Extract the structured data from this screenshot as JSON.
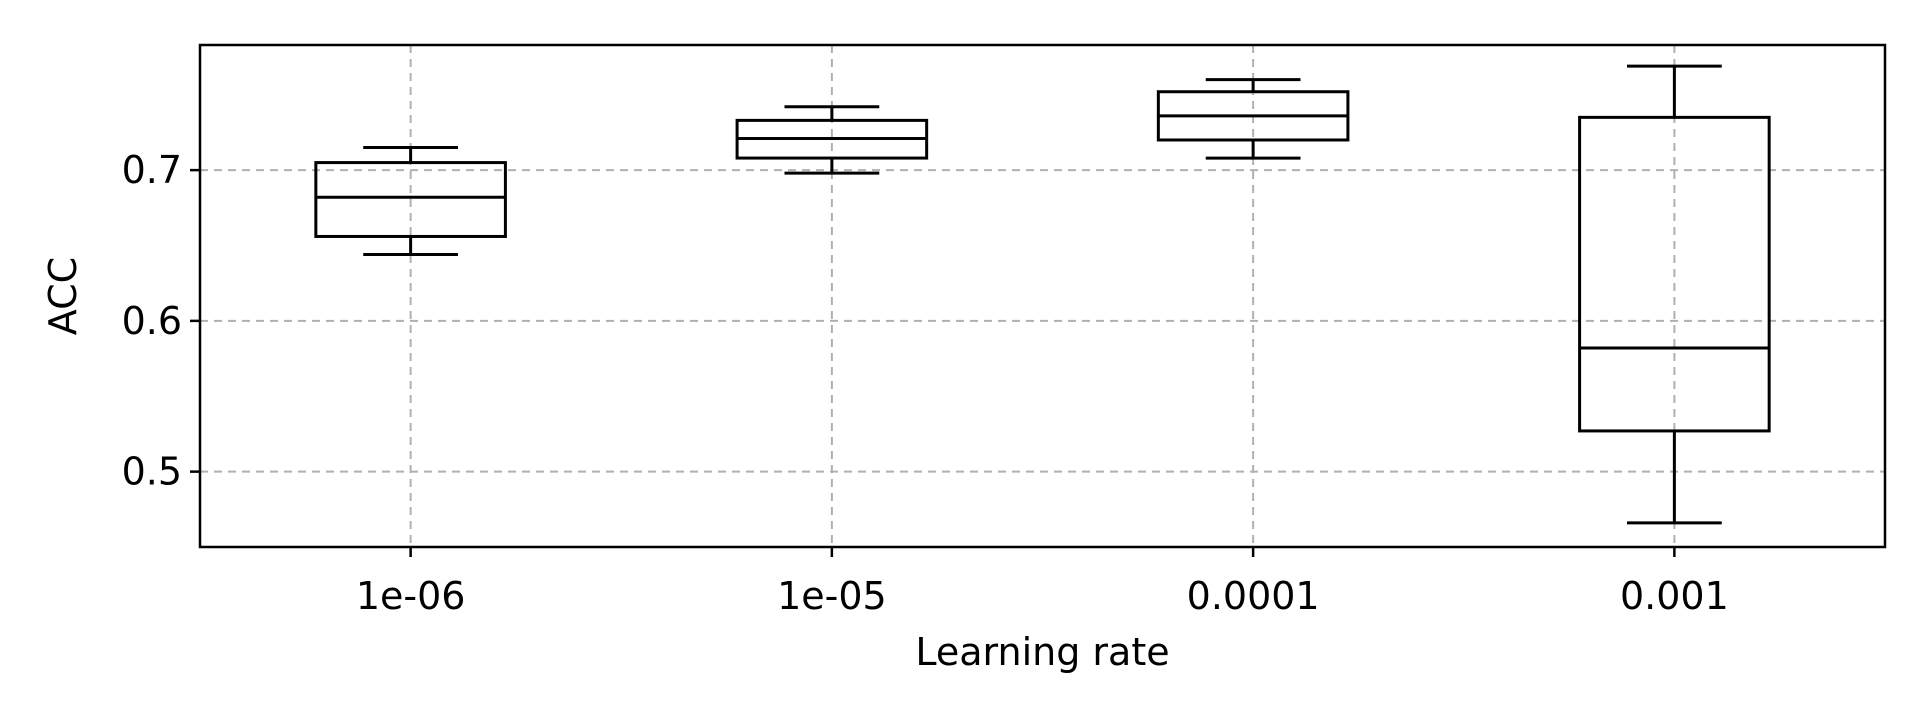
{
  "chart_data": {
    "type": "box",
    "xlabel": "Learning rate",
    "ylabel": "ACC",
    "categories": [
      "1e-06",
      "1e-05",
      "0.0001",
      "0.001"
    ],
    "boxes": [
      {
        "category": "1e-06",
        "whisker_low": 0.644,
        "q1": 0.656,
        "median": 0.682,
        "q3": 0.705,
        "whisker_high": 0.715
      },
      {
        "category": "1e-05",
        "whisker_low": 0.698,
        "q1": 0.708,
        "median": 0.721,
        "q3": 0.733,
        "whisker_high": 0.742
      },
      {
        "category": "0.0001",
        "whisker_low": 0.708,
        "q1": 0.72,
        "median": 0.736,
        "q3": 0.752,
        "whisker_high": 0.76
      },
      {
        "category": "0.001",
        "whisker_low": 0.466,
        "q1": 0.527,
        "median": 0.582,
        "q3": 0.735,
        "whisker_high": 0.769
      }
    ],
    "ylim": [
      0.45,
      0.783
    ],
    "yticks": [
      0.5,
      0.6,
      0.7
    ],
    "ytick_labels": [
      "0.5",
      "0.6",
      "0.7"
    ],
    "grid": true,
    "colors": {
      "box": "#000000",
      "grid": "#b0b0b0"
    }
  }
}
